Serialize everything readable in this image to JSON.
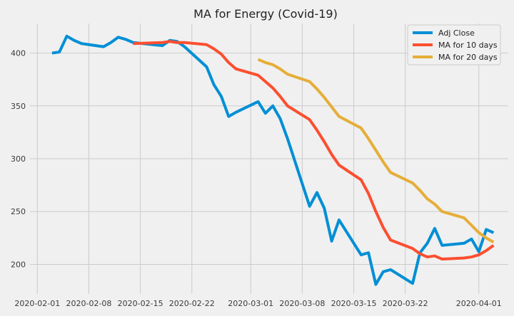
{
  "chart_data": {
    "type": "line",
    "title": "MA for Energy (Covid-19)",
    "xlabel": "",
    "ylabel": "",
    "ylim": [
      172,
      428
    ],
    "xlim": [
      "2020-01-31",
      "2020-04-05"
    ],
    "grid": true,
    "legend_position": "top-right",
    "x_ticks": [
      "2020-02-01",
      "2020-02-08",
      "2020-02-15",
      "2020-02-22",
      "2020-03-01",
      "2020-03-08",
      "2020-03-15",
      "2020-03-22",
      "2020-04-01"
    ],
    "y_ticks": [
      200,
      250,
      300,
      350,
      400
    ],
    "series": [
      {
        "name": "Adj Close",
        "color": "#008fd5",
        "points": [
          [
            "2020-02-03",
            400
          ],
          [
            "2020-02-04",
            401
          ],
          [
            "2020-02-05",
            416
          ],
          [
            "2020-02-06",
            412
          ],
          [
            "2020-02-07",
            409
          ],
          [
            "2020-02-10",
            406
          ],
          [
            "2020-02-11",
            410
          ],
          [
            "2020-02-12",
            415
          ],
          [
            "2020-02-13",
            413
          ],
          [
            "2020-02-14",
            410
          ],
          [
            "2020-02-18",
            407
          ],
          [
            "2020-02-19",
            412
          ],
          [
            "2020-02-20",
            411
          ],
          [
            "2020-02-21",
            406
          ],
          [
            "2020-02-24",
            387
          ],
          [
            "2020-02-25",
            370
          ],
          [
            "2020-02-26",
            359
          ],
          [
            "2020-02-27",
            340
          ],
          [
            "2020-02-28",
            344
          ],
          [
            "2020-03-02",
            354
          ],
          [
            "2020-03-03",
            343
          ],
          [
            "2020-03-04",
            350
          ],
          [
            "2020-03-05",
            338
          ],
          [
            "2020-03-06",
            319
          ],
          [
            "2020-03-09",
            255
          ],
          [
            "2020-03-10",
            268
          ],
          [
            "2020-03-11",
            253
          ],
          [
            "2020-03-12",
            222
          ],
          [
            "2020-03-13",
            242
          ],
          [
            "2020-03-16",
            209
          ],
          [
            "2020-03-17",
            211
          ],
          [
            "2020-03-18",
            181
          ],
          [
            "2020-03-19",
            193
          ],
          [
            "2020-03-20",
            195
          ],
          [
            "2020-03-23",
            182
          ],
          [
            "2020-03-24",
            211
          ],
          [
            "2020-03-25",
            220
          ],
          [
            "2020-03-26",
            234
          ],
          [
            "2020-03-27",
            218
          ],
          [
            "2020-03-30",
            220
          ],
          [
            "2020-03-31",
            224
          ],
          [
            "2020-04-01",
            212
          ],
          [
            "2020-04-02",
            233
          ],
          [
            "2020-04-03",
            230
          ]
        ]
      },
      {
        "name": "MA for 10 days",
        "color": "#fc4f30",
        "points": [
          [
            "2020-02-14",
            409
          ],
          [
            "2020-02-18",
            410
          ],
          [
            "2020-02-19",
            411
          ],
          [
            "2020-02-20",
            410
          ],
          [
            "2020-02-21",
            410
          ],
          [
            "2020-02-24",
            408
          ],
          [
            "2020-02-25",
            404
          ],
          [
            "2020-02-26",
            399
          ],
          [
            "2020-02-27",
            391
          ],
          [
            "2020-02-28",
            385
          ],
          [
            "2020-03-02",
            379
          ],
          [
            "2020-03-03",
            373
          ],
          [
            "2020-03-04",
            367
          ],
          [
            "2020-03-05",
            359
          ],
          [
            "2020-03-06",
            350
          ],
          [
            "2020-03-09",
            337
          ],
          [
            "2020-03-10",
            327
          ],
          [
            "2020-03-11",
            316
          ],
          [
            "2020-03-12",
            304
          ],
          [
            "2020-03-13",
            294
          ],
          [
            "2020-03-16",
            280
          ],
          [
            "2020-03-17",
            267
          ],
          [
            "2020-03-18",
            250
          ],
          [
            "2020-03-19",
            235
          ],
          [
            "2020-03-20",
            223
          ],
          [
            "2020-03-23",
            215
          ],
          [
            "2020-03-24",
            210
          ],
          [
            "2020-03-25",
            207
          ],
          [
            "2020-03-26",
            208
          ],
          [
            "2020-03-27",
            205
          ],
          [
            "2020-03-30",
            206
          ],
          [
            "2020-03-31",
            207
          ],
          [
            "2020-04-01",
            209
          ],
          [
            "2020-04-02",
            213
          ],
          [
            "2020-04-03",
            218
          ]
        ]
      },
      {
        "name": "MA for 20 days",
        "color": "#e5ae38",
        "points": [
          [
            "2020-03-02",
            394
          ],
          [
            "2020-03-03",
            391
          ],
          [
            "2020-03-04",
            389
          ],
          [
            "2020-03-05",
            385
          ],
          [
            "2020-03-06",
            380
          ],
          [
            "2020-03-09",
            373
          ],
          [
            "2020-03-10",
            366
          ],
          [
            "2020-03-11",
            358
          ],
          [
            "2020-03-12",
            349
          ],
          [
            "2020-03-13",
            340
          ],
          [
            "2020-03-16",
            329
          ],
          [
            "2020-03-17",
            319
          ],
          [
            "2020-03-18",
            308
          ],
          [
            "2020-03-19",
            297
          ],
          [
            "2020-03-20",
            287
          ],
          [
            "2020-03-23",
            277
          ],
          [
            "2020-03-24",
            270
          ],
          [
            "2020-03-25",
            262
          ],
          [
            "2020-03-26",
            257
          ],
          [
            "2020-03-27",
            250
          ],
          [
            "2020-03-30",
            244
          ],
          [
            "2020-03-31",
            237
          ],
          [
            "2020-04-01",
            230
          ],
          [
            "2020-04-02",
            225
          ],
          [
            "2020-04-03",
            221
          ]
        ]
      }
    ]
  }
}
